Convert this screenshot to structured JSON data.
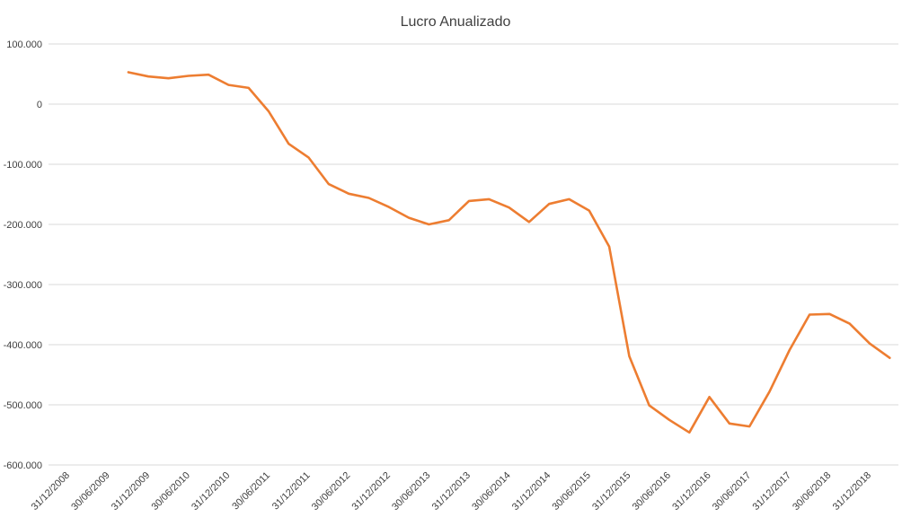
{
  "chart_data": {
    "type": "line",
    "title": "Lucro Anualizado",
    "xlabel": "",
    "ylabel": "",
    "grid": true,
    "legend": "none",
    "ylim": [
      -600000,
      100000
    ],
    "y_ticks": [
      100000,
      0,
      -100000,
      -200000,
      -300000,
      -400000,
      -500000,
      -600000
    ],
    "y_tick_labels": [
      "100.000",
      "0",
      "-100.000",
      "-200.000",
      "-300.000",
      "-400.000",
      "-500.000",
      "-600.000"
    ],
    "x_tick_labels": [
      "31/12/2008",
      "30/06/2009",
      "31/12/2009",
      "30/06/2010",
      "31/12/2010",
      "30/06/2011",
      "31/12/2011",
      "30/06/2012",
      "31/12/2012",
      "30/06/2013",
      "31/12/2013",
      "30/06/2014",
      "31/12/2014",
      "30/06/2015",
      "31/12/2015",
      "30/06/2016",
      "31/12/2016",
      "30/06/2017",
      "31/12/2017",
      "30/06/2018",
      "31/12/2018"
    ],
    "x_categories": [
      "31/12/2008",
      "31/03/2009",
      "30/06/2009",
      "30/09/2009",
      "31/12/2009",
      "31/03/2010",
      "30/06/2010",
      "30/09/2010",
      "31/12/2010",
      "31/03/2011",
      "30/06/2011",
      "30/09/2011",
      "31/12/2011",
      "31/03/2012",
      "30/06/2012",
      "30/09/2012",
      "31/12/2012",
      "31/03/2013",
      "30/06/2013",
      "30/09/2013",
      "31/12/2013",
      "31/03/2014",
      "30/06/2014",
      "30/09/2014",
      "31/12/2014",
      "31/03/2015",
      "30/06/2015",
      "30/09/2015",
      "31/12/2015",
      "31/03/2016",
      "30/06/2016",
      "30/09/2016",
      "31/12/2016",
      "31/03/2017",
      "30/06/2017",
      "30/09/2017",
      "31/12/2017",
      "31/03/2018",
      "30/06/2018",
      "30/09/2018",
      "31/12/2018",
      "31/03/2019"
    ],
    "series": [
      {
        "color": "#ED7D31",
        "values": [
          null,
          null,
          null,
          53000,
          46000,
          43000,
          47000,
          49000,
          32000,
          27000,
          -12000,
          -66000,
          -89000,
          -133000,
          -149000,
          -156000,
          -171000,
          -189000,
          -200000,
          -193000,
          -161000,
          -158000,
          -172000,
          -196000,
          -166000,
          -158000,
          -177000,
          -237000,
          -419000,
          -501000,
          -525000,
          -546000,
          -487000,
          -531000,
          -536000,
          -478000,
          -409000,
          -350000,
          -349000,
          -365000,
          -398000,
          -422000
        ]
      }
    ]
  }
}
